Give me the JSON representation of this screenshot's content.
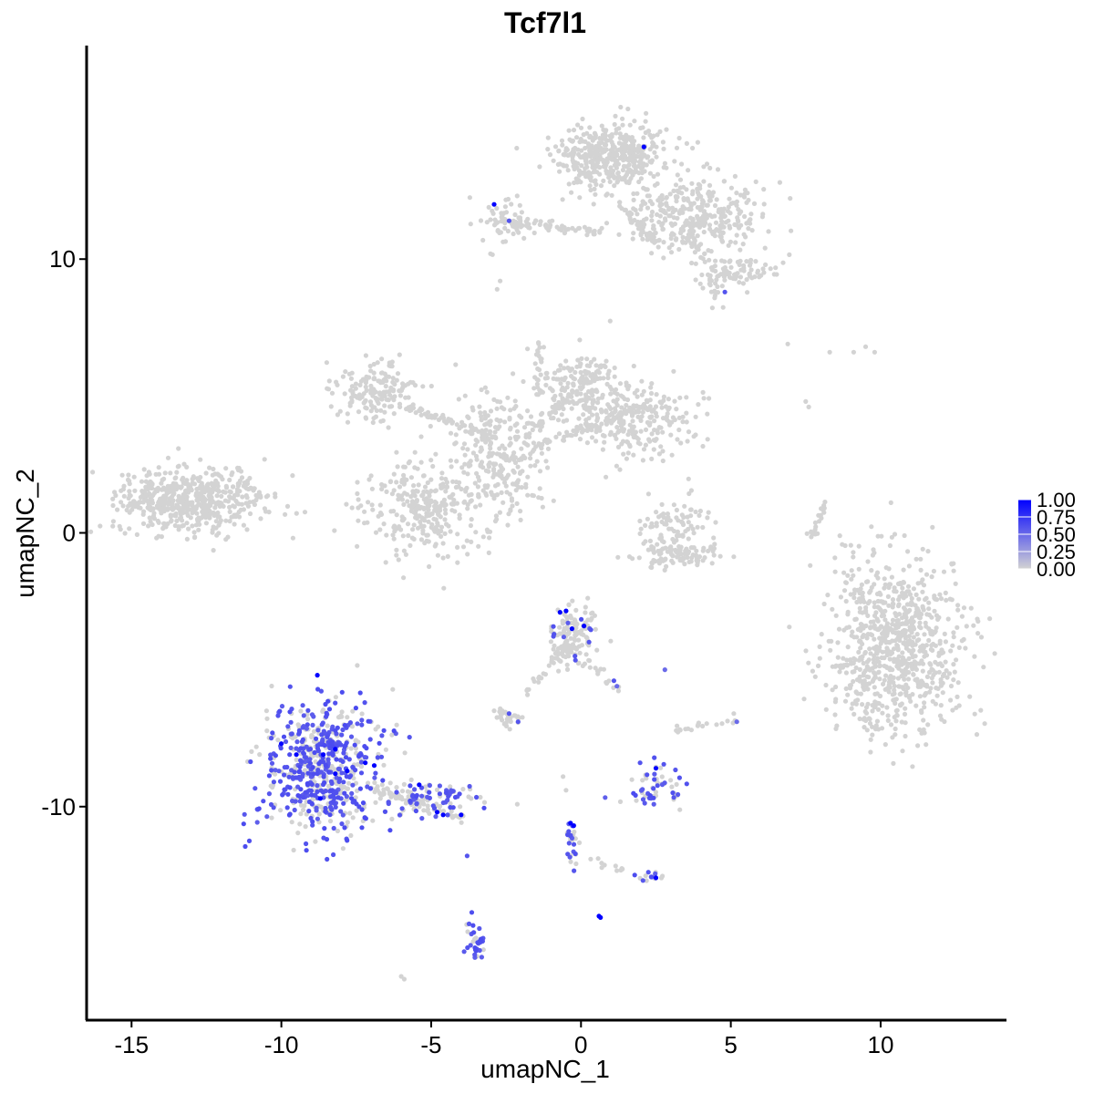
{
  "chart_data": {
    "type": "scatter",
    "title": "Tcf7l1",
    "xlabel": "umapNC_1",
    "ylabel": "umapNC_2",
    "xlim": [
      -16.5,
      14.2
    ],
    "ylim": [
      -17.8,
      17.8
    ],
    "x_ticks": [
      -15,
      -10,
      -5,
      0,
      5,
      10
    ],
    "x_tick_labels": [
      "-15",
      "-10",
      "-5",
      "0",
      "5",
      "10"
    ],
    "y_ticks": [
      -10,
      0,
      10
    ],
    "y_tick_labels": [
      "-10",
      "0",
      "10"
    ],
    "grid": false,
    "legend": {
      "position": "right",
      "type": "colorbar",
      "values": [
        1.0,
        0.75,
        0.5,
        0.25,
        0.0
      ],
      "labels": [
        "1.00",
        "0.75",
        "0.50",
        "0.25",
        "0.00"
      ],
      "low_color": "#d3d3d3",
      "high_color": "#0000ff"
    },
    "clusters": [
      {
        "cx": 1.0,
        "cy": 13.8,
        "sx": 0.9,
        "sy": 0.6,
        "n": 450,
        "expr_frac": 0.0
      },
      {
        "cx": 3.8,
        "cy": 11.5,
        "sx": 1.1,
        "sy": 0.7,
        "n": 350,
        "expr_frac": 0.0
      },
      {
        "cx": 5.2,
        "cy": 9.6,
        "sx": 0.6,
        "sy": 0.3,
        "n": 80,
        "expr_frac": 0.0
      },
      {
        "cx": 4.4,
        "cy": 8.9,
        "sx": 0.2,
        "sy": 0.3,
        "n": 20,
        "expr_frac": 0.0
      },
      {
        "cx": -2.6,
        "cy": 11.4,
        "sx": 0.5,
        "sy": 0.5,
        "n": 50,
        "expr_frac": 0.0
      },
      {
        "cx": -13.0,
        "cy": 1.2,
        "sx": 1.3,
        "sy": 0.6,
        "n": 550,
        "expr_frac": 0.0
      },
      {
        "cx": -6.8,
        "cy": 5.2,
        "sx": 0.7,
        "sy": 0.5,
        "n": 160,
        "expr_frac": 0.0
      },
      {
        "cx": -5.2,
        "cy": 1.0,
        "sx": 1.0,
        "sy": 0.9,
        "n": 300,
        "expr_frac": 0.0
      },
      {
        "cx": -2.8,
        "cy": 3.0,
        "sx": 0.8,
        "sy": 1.2,
        "n": 250,
        "expr_frac": 0.0
      },
      {
        "cx": 0.0,
        "cy": 5.5,
        "sx": 0.7,
        "sy": 0.6,
        "n": 130,
        "expr_frac": 0.0
      },
      {
        "cx": 1.7,
        "cy": 4.1,
        "sx": 1.1,
        "sy": 0.6,
        "n": 250,
        "expr_frac": 0.0
      },
      {
        "cx": 3.1,
        "cy": 0.2,
        "sx": 0.6,
        "sy": 0.5,
        "n": 90,
        "expr_frac": 0.0
      },
      {
        "cx": 3.2,
        "cy": -0.8,
        "sx": 0.8,
        "sy": 0.2,
        "n": 90,
        "expr_frac": 0.0
      },
      {
        "cx": 10.5,
        "cy": -4.2,
        "sx": 1.1,
        "sy": 1.6,
        "n": 800,
        "expr_frac": 0.0
      },
      {
        "cx": -0.3,
        "cy": -3.7,
        "sx": 0.4,
        "sy": 0.5,
        "n": 120,
        "expr_frac": 0.08
      },
      {
        "cx": -2.4,
        "cy": -6.8,
        "sx": 0.25,
        "sy": 0.2,
        "n": 30,
        "expr_frac": 0.05
      },
      {
        "cx": -8.6,
        "cy": -8.6,
        "sx": 1.0,
        "sy": 1.2,
        "n": 650,
        "expr_frac": 0.55
      },
      {
        "cx": -5.3,
        "cy": -9.7,
        "sx": 0.9,
        "sy": 0.35,
        "n": 100,
        "expr_frac": 0.45
      },
      {
        "cx": 2.4,
        "cy": -9.3,
        "sx": 0.5,
        "sy": 0.4,
        "n": 60,
        "expr_frac": 0.55
      },
      {
        "cx": -3.5,
        "cy": -14.9,
        "sx": 0.15,
        "sy": 0.5,
        "n": 35,
        "expr_frac": 0.65
      },
      {
        "cx": -0.3,
        "cy": -11.2,
        "sx": 0.15,
        "sy": 0.5,
        "n": 25,
        "expr_frac": 0.7
      },
      {
        "cx": 2.3,
        "cy": -12.6,
        "sx": 0.2,
        "sy": 0.1,
        "n": 15,
        "expr_frac": 0.3
      }
    ],
    "bridges": [
      {
        "from": [
          -2.8,
          11.4
        ],
        "to": [
          0.6,
          11.0
        ],
        "n": 70
      },
      {
        "from": [
          1.3,
          12.0
        ],
        "to": [
          2.5,
          10.6
        ],
        "n": 45
      },
      {
        "from": [
          -5.8,
          4.6
        ],
        "to": [
          -3.2,
          3.6
        ],
        "n": 60
      },
      {
        "from": [
          -3.0,
          2.4
        ],
        "to": [
          -1.2,
          1.0
        ],
        "n": 25
      },
      {
        "from": [
          -1.8,
          3.5
        ],
        "to": [
          0.8,
          6.2
        ],
        "n": 60
      },
      {
        "from": [
          -1.5,
          3.2
        ],
        "to": [
          2.2,
          4.6
        ],
        "n": 60
      },
      {
        "from": [
          -1.4,
          7.0
        ],
        "to": [
          -1.4,
          5.0
        ],
        "n": 25
      },
      {
        "from": [
          8.1,
          1.0
        ],
        "to": [
          7.7,
          -0.2
        ],
        "n": 22
      },
      {
        "from": [
          -1.9,
          -6.0
        ],
        "to": [
          -0.4,
          -3.9
        ],
        "n": 30
      },
      {
        "from": [
          -0.5,
          -4.2
        ],
        "to": [
          1.2,
          -5.7
        ],
        "n": 22
      },
      {
        "from": [
          -7.0,
          -9.3
        ],
        "to": [
          -4.0,
          -10.4
        ],
        "n": 55
      },
      {
        "from": [
          -0.3,
          -11.7
        ],
        "to": [
          1.7,
          -12.4
        ],
        "n": 12
      },
      {
        "from": [
          3.2,
          -7.2
        ],
        "to": [
          5.1,
          -6.8
        ],
        "n": 18
      },
      {
        "from": [
          8.6,
          -5.0
        ],
        "to": [
          9.2,
          -4.6
        ],
        "n": 14
      }
    ],
    "singletons": [
      {
        "x": 6.9,
        "y": 6.9,
        "v": 0
      },
      {
        "x": 8.3,
        "y": 6.6,
        "v": 0
      },
      {
        "x": 9.5,
        "y": 6.8,
        "v": 0
      },
      {
        "x": 9.8,
        "y": 6.6,
        "v": 0
      },
      {
        "x": 9.1,
        "y": 6.6,
        "v": 0
      },
      {
        "x": 7.5,
        "y": 4.8,
        "v": 0
      },
      {
        "x": 7.6,
        "y": 4.6,
        "v": 0
      },
      {
        "x": -6.0,
        "y": -16.2,
        "v": 0
      },
      {
        "x": -5.9,
        "y": -16.3,
        "v": 0
      },
      {
        "x": -0.6,
        "y": -8.9,
        "v": 0
      },
      {
        "x": -0.5,
        "y": -9.4,
        "v": 0
      },
      {
        "x": -3.8,
        "y": -11.8,
        "v": 0.6
      },
      {
        "x": 0.6,
        "y": -14.0,
        "v": 1.0
      },
      {
        "x": 0.65,
        "y": -14.05,
        "v": 1.0
      },
      {
        "x": 2.8,
        "y": -5.0,
        "v": 0.5
      },
      {
        "x": 5.1,
        "y": -6.6,
        "v": 0.0
      },
      {
        "x": 5.2,
        "y": -6.9,
        "v": 0.5
      },
      {
        "x": -2.8,
        "y": 8.9,
        "v": 0
      },
      {
        "x": -2.7,
        "y": 9.2,
        "v": 0
      }
    ],
    "highlights": [
      {
        "x": 2.1,
        "y": 14.1,
        "v": 1.0
      },
      {
        "x": -2.9,
        "y": 12.0,
        "v": 1.0
      },
      {
        "x": -2.4,
        "y": 11.4,
        "v": 0.6
      },
      {
        "x": 4.8,
        "y": 8.8,
        "v": 0.6
      },
      {
        "x": -0.7,
        "y": -2.9,
        "v": 1.0
      },
      {
        "x": -0.5,
        "y": -2.85,
        "v": 1.0
      },
      {
        "x": -0.3,
        "y": -3.5,
        "v": 1.0
      },
      {
        "x": 0.1,
        "y": -3.4,
        "v": 1.0
      },
      {
        "x": -0.9,
        "y": -3.7,
        "v": 0.6
      },
      {
        "x": -0.2,
        "y": -4.5,
        "v": 0.6
      },
      {
        "x": 1.1,
        "y": -5.4,
        "v": 0.6
      },
      {
        "x": 1.2,
        "y": -5.6,
        "v": 0.5
      },
      {
        "x": -8.8,
        "y": -5.2,
        "v": 1.0
      },
      {
        "x": -10.0,
        "y": -7.7,
        "v": 1.0
      },
      {
        "x": -9.5,
        "y": -8.1,
        "v": 1.0
      },
      {
        "x": -8.6,
        "y": -8.1,
        "v": 1.0
      },
      {
        "x": -8.2,
        "y": -7.9,
        "v": 1.0
      },
      {
        "x": -7.8,
        "y": -8.7,
        "v": 1.0
      },
      {
        "x": -8.2,
        "y": -8.8,
        "v": 1.0
      },
      {
        "x": -8.7,
        "y": -9.7,
        "v": 1.0
      },
      {
        "x": -7.2,
        "y": -8.4,
        "v": 1.0
      },
      {
        "x": -6.9,
        "y": -8.5,
        "v": 1.0
      },
      {
        "x": -5.4,
        "y": -9.2,
        "v": 1.0
      },
      {
        "x": -4.8,
        "y": -10.2,
        "v": 1.0
      },
      {
        "x": -4.6,
        "y": -10.3,
        "v": 1.0
      },
      {
        "x": -4.0,
        "y": -10.3,
        "v": 1.0
      },
      {
        "x": 2.5,
        "y": -8.6,
        "v": 1.0
      },
      {
        "x": 2.5,
        "y": -12.6,
        "v": 1.0
      },
      {
        "x": -0.35,
        "y": -10.6,
        "v": 1.0
      },
      {
        "x": -0.25,
        "y": -10.7,
        "v": 1.0
      },
      {
        "x": -2.4,
        "y": -6.6,
        "v": 0.6
      },
      {
        "x": -2.1,
        "y": -6.9,
        "v": 0.6
      }
    ]
  }
}
